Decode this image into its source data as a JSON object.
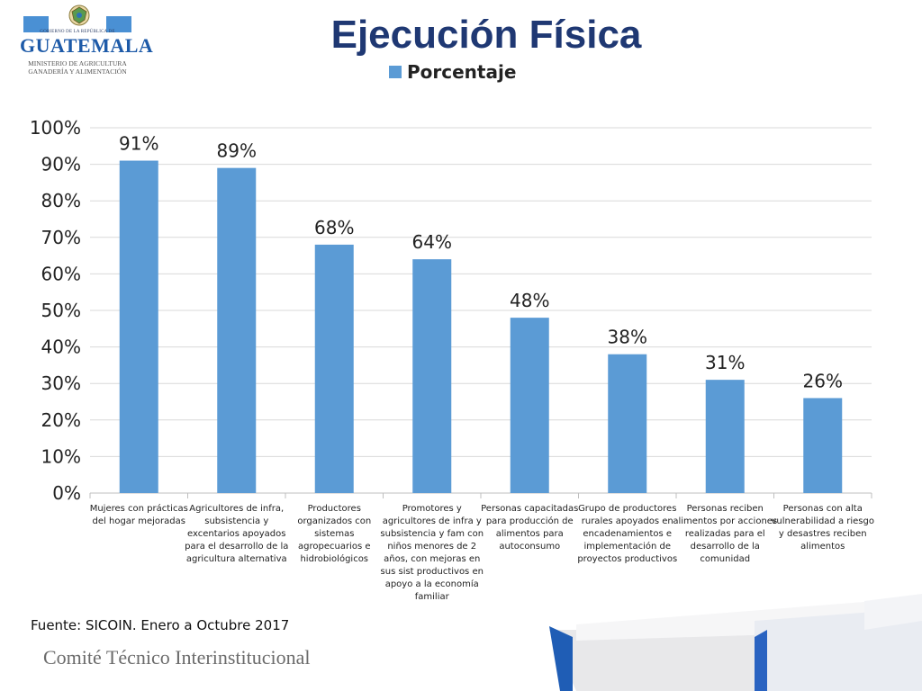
{
  "header": {
    "title": "Ejecución Física",
    "logo": {
      "government_text": "GOBIERNO DE LA REPÚBLICA DE",
      "country_text": "GUATEMALA",
      "ministry_line1": "MINISTERIO DE AGRICULTURA",
      "ministry_line2": "GANADERÍA Y ALIMENTACIÓN"
    }
  },
  "chart_data": {
    "type": "bar",
    "categories": [
      "Mujeres con prácticas del hogar mejoradas",
      "Agricultores de infra, subsistencia y excentarios apoyados para el desarrollo de la agricultura alternativa",
      "Productores organizados con sistemas agropecuarios e hidrobiológicos",
      "Promotores y agricultores de infra y subsistencia y fam con niños menores de 2 años, con mejoras en sus sist productivos en apoyo a la economía familiar",
      "Personas capacitadas para producción de alimentos para autoconsumo",
      "Grupo de productores rurales apoyados en encadenamientos e implementación de proyectos productivos",
      "Personas reciben alimentos por acciones realizadas para el desarrollo de la comunidad",
      "Personas con alta vulnerabilidad a riesgo y desastres reciben alimentos"
    ],
    "category_lines": [
      [
        "Mujeres con prácticas",
        "del hogar mejoradas"
      ],
      [
        "Agricultores de infra,",
        "subsistencia y",
        "excentarios apoyados",
        "para el desarrollo de la",
        "agricultura alternativa"
      ],
      [
        "Productores",
        "organizados con",
        "sistemas",
        "agropecuarios e",
        "hidrobiológicos"
      ],
      [
        "Promotores y",
        "agricultores de infra y",
        "subsistencia y fam con",
        "niños menores de 2",
        "años, con mejoras en",
        "sus sist productivos en",
        "apoyo a la economía",
        "familiar"
      ],
      [
        "Personas capacitadas",
        "para producción de",
        "alimentos para",
        "autoconsumo"
      ],
      [
        "Grupo de productores",
        "rurales apoyados en",
        "encadenamientos e",
        "implementación de",
        "proyectos productivos"
      ],
      [
        "Personas reciben",
        "alimentos por acciones",
        "realizadas para el",
        "desarrollo de la",
        "comunidad"
      ],
      [
        "Personas con alta",
        "vulnerabilidad a riesgo",
        "y desastres reciben",
        "alimentos"
      ]
    ],
    "series": [
      {
        "name": "Porcentaje",
        "values": [
          91,
          89,
          68,
          64,
          48,
          38,
          31,
          26
        ]
      }
    ],
    "data_labels": [
      "91%",
      "89%",
      "68%",
      "64%",
      "48%",
      "38%",
      "31%",
      "26%"
    ],
    "y_ticks": [
      "0%",
      "10%",
      "20%",
      "30%",
      "40%",
      "50%",
      "60%",
      "70%",
      "80%",
      "90%",
      "100%"
    ],
    "ylim": [
      0,
      100
    ],
    "grid": true,
    "legend_position": "top",
    "bar_color": "#5b9bd5"
  },
  "footer": {
    "source": "Fuente: SICOIN. Enero a  Octubre 2017",
    "committee": "Comité Técnico Interinstitucional"
  },
  "colors": {
    "title": "#1f3873",
    "accent_blue": "#1d5aa8",
    "grid": "#d9d9d9"
  }
}
